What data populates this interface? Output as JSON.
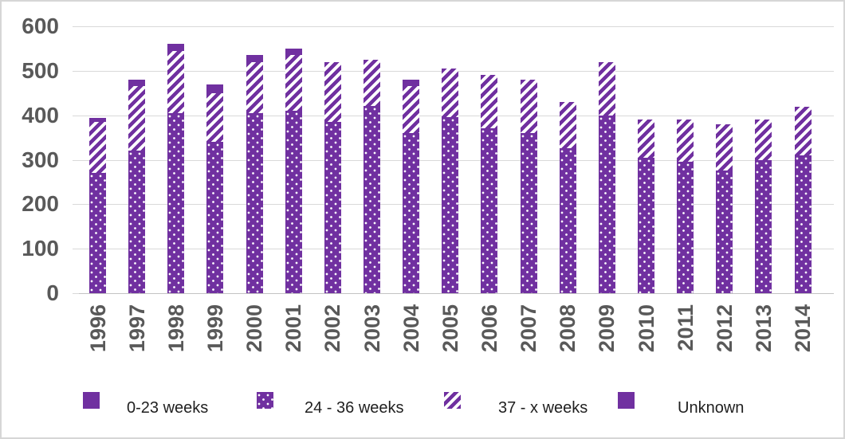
{
  "chart_data": {
    "type": "bar",
    "stacked": true,
    "title": "",
    "xlabel": "",
    "ylabel": "",
    "categories": [
      "1996",
      "1997",
      "1998",
      "1999",
      "2000",
      "2001",
      "2002",
      "2003",
      "2004",
      "2005",
      "2006",
      "2007",
      "2008",
      "2009",
      "2010",
      "2011",
      "2012",
      "2013",
      "2014"
    ],
    "series": [
      {
        "name": "0-23 weeks",
        "pattern": "solid",
        "values": [
          0,
          0,
          0,
          0,
          0,
          0,
          0,
          0,
          0,
          0,
          0,
          0,
          0,
          0,
          0,
          0,
          0,
          0,
          0
        ]
      },
      {
        "name": "24 - 36 weeks",
        "pattern": "dots",
        "values": [
          270,
          320,
          405,
          340,
          405,
          410,
          385,
          420,
          360,
          395,
          370,
          360,
          325,
          400,
          305,
          295,
          275,
          300,
          310
        ]
      },
      {
        "name": "37 - x weeks",
        "pattern": "hatch",
        "values": [
          115,
          145,
          140,
          110,
          115,
          125,
          135,
          105,
          105,
          110,
          120,
          120,
          105,
          120,
          85,
          95,
          105,
          90,
          110
        ]
      },
      {
        "name": "Unknown",
        "pattern": "solid",
        "values": [
          10,
          15,
          15,
          20,
          15,
          15,
          0,
          0,
          15,
          0,
          0,
          0,
          0,
          0,
          0,
          0,
          0,
          0,
          0
        ]
      }
    ],
    "totals": [
      395,
      480,
      560,
      470,
      535,
      550,
      520,
      525,
      480,
      505,
      490,
      480,
      430,
      520,
      390,
      390,
      380,
      390,
      420
    ],
    "ylim": [
      0,
      600
    ],
    "yticks": [
      0,
      100,
      200,
      300,
      400,
      500,
      600
    ],
    "grid": true,
    "legend_position": "bottom",
    "accent_color": "#7030A0",
    "axis_text_color": "#595959",
    "gridline_color": "#d9d9d9",
    "background_color": "#ffffff"
  }
}
